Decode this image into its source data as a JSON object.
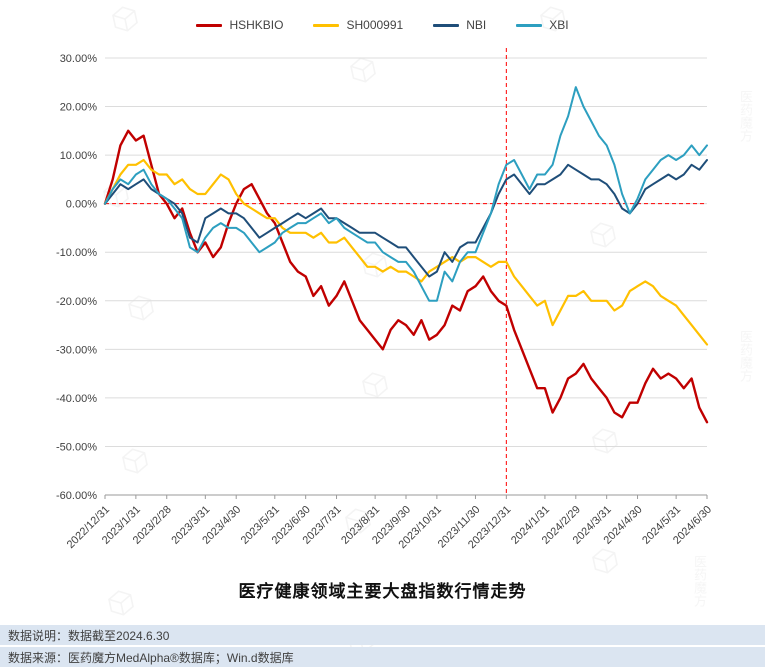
{
  "watermark": {
    "text": "医药魔方"
  },
  "legend": [
    {
      "label": "HSHKBIO",
      "color": "#c00000"
    },
    {
      "label": "SH000991",
      "color": "#ffc000"
    },
    {
      "label": "NBI",
      "color": "#1f4e79"
    },
    {
      "label": "XBI",
      "color": "#2d9fc0"
    }
  ],
  "chart_data": {
    "type": "line",
    "title": "医疗健康领域主要大盘指数行情走势",
    "ylim": [
      -60,
      30
    ],
    "grid": true,
    "legend_position": "top",
    "y_tick_values": [
      30,
      20,
      10,
      0,
      -10,
      -20,
      -30,
      -40,
      -50,
      -60
    ],
    "y_tick_labels": [
      "30.00%",
      "20.00%",
      "10.00%",
      "0.00%",
      "-10.00%",
      "-20.00%",
      "-30.00%",
      "-40.00%",
      "-50.00%",
      "-60.00%"
    ],
    "x_tick_labels": [
      "2022/12/31",
      "2023/1/31",
      "2023/2/28",
      "2023/3/31",
      "2023/4/30",
      "2023/5/31",
      "2023/6/30",
      "2023/7/31",
      "2023/8/31",
      "2023/9/30",
      "2023/10/31",
      "2023/11/30",
      "2023/12/31",
      "2024/1/31",
      "2024/2/29",
      "2024/3/31",
      "2024/4/30",
      "2024/5/31",
      "2024/6/30"
    ],
    "x_tick_indices": [
      0,
      4,
      8,
      13,
      17,
      22,
      26,
      30,
      35,
      39,
      43,
      48,
      52,
      57,
      61,
      65,
      69,
      74,
      78
    ],
    "n_points": 79,
    "zero_line": {
      "style": "dashed",
      "color": "#ff0000"
    },
    "vline": {
      "at_index": 52,
      "style": "dashed",
      "color": "#ff0000"
    },
    "series": [
      {
        "name": "HSHKBIO",
        "color": "#c00000",
        "values": [
          0,
          5,
          12,
          15,
          13,
          14,
          8,
          2,
          0,
          -3,
          -1,
          -6,
          -10,
          -8,
          -11,
          -9,
          -4,
          0,
          3,
          4,
          1,
          -2,
          -4,
          -8,
          -12,
          -14,
          -15,
          -19,
          -17,
          -21,
          -19,
          -16,
          -20,
          -24,
          -26,
          -28,
          -30,
          -26,
          -24,
          -25,
          -27,
          -24,
          -28,
          -27,
          -25,
          -21,
          -22,
          -18,
          -17,
          -15,
          -18,
          -20,
          -21,
          -26,
          -30,
          -34,
          -38,
          -38,
          -43,
          -40,
          -36,
          -35,
          -33,
          -36,
          -38,
          -40,
          -43,
          -44,
          -41,
          -41,
          -37,
          -34,
          -36,
          -35,
          -36,
          -38,
          -36,
          -42,
          -45
        ]
      },
      {
        "name": "SH000991",
        "color": "#ffc000",
        "values": [
          0,
          3,
          6,
          8,
          8,
          9,
          7,
          6,
          6,
          4,
          5,
          3,
          2,
          2,
          4,
          6,
          5,
          2,
          0,
          -1,
          -2,
          -3,
          -3,
          -5,
          -6,
          -6,
          -6,
          -7,
          -6,
          -8,
          -8,
          -7,
          -9,
          -11,
          -13,
          -13,
          -14,
          -13,
          -14,
          -14,
          -15,
          -16,
          -14,
          -13,
          -12,
          -11,
          -12,
          -11,
          -11,
          -12,
          -13,
          -12,
          -12,
          -15,
          -17,
          -19,
          -21,
          -20,
          -25,
          -22,
          -19,
          -19,
          -18,
          -20,
          -20,
          -20,
          -22,
          -21,
          -18,
          -17,
          -16,
          -17,
          -19,
          -20,
          -21,
          -23,
          -25,
          -27,
          -29
        ]
      },
      {
        "name": "NBI",
        "color": "#1f4e79",
        "values": [
          0,
          2,
          4,
          3,
          4,
          5,
          3,
          2,
          1,
          0,
          -2,
          -7,
          -8,
          -3,
          -2,
          -1,
          -2,
          -2,
          -3,
          -5,
          -7,
          -6,
          -5,
          -4,
          -3,
          -2,
          -3,
          -2,
          -1,
          -3,
          -3,
          -4,
          -5,
          -6,
          -6,
          -6,
          -7,
          -8,
          -9,
          -9,
          -11,
          -13,
          -15,
          -14,
          -10,
          -12,
          -9,
          -8,
          -8,
          -5,
          -2,
          2,
          5,
          6,
          4,
          2,
          4,
          4,
          5,
          6,
          8,
          7,
          6,
          5,
          5,
          4,
          2,
          -1,
          -2,
          0,
          3,
          4,
          5,
          6,
          5,
          6,
          8,
          7,
          9
        ]
      },
      {
        "name": "XBI",
        "color": "#2d9fc0",
        "values": [
          0,
          3,
          5,
          4,
          6,
          7,
          4,
          2,
          1,
          -1,
          -3,
          -9,
          -10,
          -7,
          -5,
          -4,
          -5,
          -5,
          -6,
          -8,
          -10,
          -9,
          -8,
          -6,
          -5,
          -4,
          -4,
          -3,
          -2,
          -4,
          -3,
          -5,
          -6,
          -7,
          -8,
          -8,
          -10,
          -11,
          -12,
          -12,
          -14,
          -17,
          -20,
          -20,
          -14,
          -16,
          -12,
          -10,
          -10,
          -6,
          -2,
          4,
          8,
          9,
          6,
          3,
          6,
          6,
          8,
          14,
          18,
          24,
          20,
          17,
          14,
          12,
          8,
          2,
          -2,
          1,
          5,
          7,
          9,
          10,
          9,
          10,
          12,
          10,
          12
        ]
      }
    ]
  },
  "footer": {
    "line1_label": "数据说明：",
    "line1_text": "数据截至2024.6.30",
    "line2_label": "数据来源：",
    "line2_text": "医药魔方MedAlpha®数据库；Win.d数据库"
  }
}
